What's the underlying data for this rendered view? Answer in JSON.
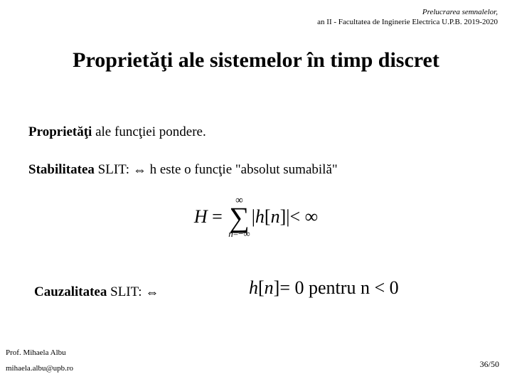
{
  "header": {
    "line1": "Prelucrarea semnalelor,",
    "line2": "an II - Facultatea de Inginerie Electrica U.P.B. 2019-2020"
  },
  "title": "Proprietăţi ale sistemelor în timp discret",
  "section1": {
    "bold": "Proprietăţi",
    "rest": " ale funcţiei pondere."
  },
  "stability": {
    "bold": "Stabilitatea",
    "mid": " SLIT: ",
    "iff": "⇔",
    "rest": " h este o funcţie \"absolut sumabilă\""
  },
  "formula1": {
    "H": "H",
    "eq": " = ",
    "sum_top": "∞",
    "sum_sym": "∑",
    "sum_bot_n": "n",
    "sum_bot_eq": "=−∞",
    "bar1": "|",
    "h": "h",
    "lb": "[",
    "n": "n",
    "rb": "]",
    "bar2": "|",
    "lt": "< ∞"
  },
  "causality": {
    "bold": "Cauzalitatea",
    "mid": " SLIT: ",
    "iff": "⇔"
  },
  "formula2": {
    "h": "h",
    "lb": "[",
    "n": "n",
    "rb": "]",
    "eq": "= 0 ",
    "pentru": " pentru ",
    "cond_n": "n",
    "cond_rest": " < 0"
  },
  "footer": {
    "name": "Prof. Mihaela Albu",
    "email": "mihaela.albu@upb.ro",
    "page": "36/50"
  }
}
